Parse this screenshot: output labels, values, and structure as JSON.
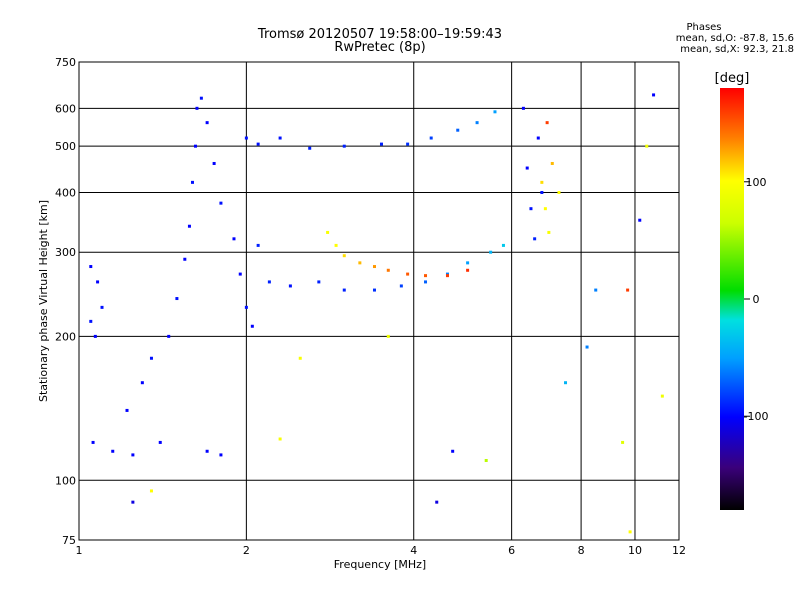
{
  "chart_data": {
    "type": "scatter",
    "title": "Tromsø 20120507 19:58:00–19:59:43",
    "subtitle": "RwPretec (8p)",
    "xlabel": "Frequency [MHz]",
    "ylabel": "Stationary phase Virtual Height [km]",
    "xscale": "log",
    "yscale": "log",
    "xlim": [
      1,
      12
    ],
    "ylim": [
      75,
      750
    ],
    "xticks": [
      1,
      2,
      4,
      6,
      8,
      10,
      12
    ],
    "xgrid": [
      2,
      4,
      6,
      8,
      10
    ],
    "yticks": [
      75,
      100,
      200,
      300,
      400,
      500,
      600,
      750
    ],
    "ygrid": [
      100,
      200,
      300,
      400,
      500,
      600
    ],
    "grid": true,
    "colorbar": {
      "label": "[deg]",
      "min": -180,
      "max": 180,
      "ticks": [
        100,
        0,
        -100
      ]
    },
    "phases": {
      "title": "Phases",
      "line1": "mean, sd,O: -87.8, 15.6",
      "line2": "mean, sd,X:  92.3, 21.8"
    },
    "series": [
      {
        "mode": "O",
        "points": [
          {
            "f": 1.05,
            "h": 280,
            "p": -100
          },
          {
            "f": 1.08,
            "h": 260,
            "p": -100
          },
          {
            "f": 1.05,
            "h": 215,
            "p": -95
          },
          {
            "f": 1.07,
            "h": 200,
            "p": -100
          },
          {
            "f": 1.1,
            "h": 230,
            "p": -95
          },
          {
            "f": 1.06,
            "h": 120,
            "p": -100
          },
          {
            "f": 1.15,
            "h": 115,
            "p": -100
          },
          {
            "f": 1.25,
            "h": 113,
            "p": -100
          },
          {
            "f": 1.22,
            "h": 140,
            "p": -100
          },
          {
            "f": 1.3,
            "h": 160,
            "p": -100
          },
          {
            "f": 1.35,
            "h": 180,
            "p": -95
          },
          {
            "f": 1.4,
            "h": 120,
            "p": -100
          },
          {
            "f": 1.45,
            "h": 200,
            "p": -100
          },
          {
            "f": 1.5,
            "h": 240,
            "p": -95
          },
          {
            "f": 1.55,
            "h": 290,
            "p": -100
          },
          {
            "f": 1.58,
            "h": 340,
            "p": -100
          },
          {
            "f": 1.6,
            "h": 420,
            "p": -95
          },
          {
            "f": 1.62,
            "h": 500,
            "p": -100
          },
          {
            "f": 1.63,
            "h": 600,
            "p": -100
          },
          {
            "f": 1.66,
            "h": 630,
            "p": -95
          },
          {
            "f": 1.7,
            "h": 560,
            "p": -100
          },
          {
            "f": 1.75,
            "h": 460,
            "p": -100
          },
          {
            "f": 1.8,
            "h": 380,
            "p": -95
          },
          {
            "f": 1.9,
            "h": 320,
            "p": -100
          },
          {
            "f": 1.95,
            "h": 270,
            "p": -100
          },
          {
            "f": 2.0,
            "h": 230,
            "p": -95
          },
          {
            "f": 2.05,
            "h": 210,
            "p": -100
          },
          {
            "f": 1.7,
            "h": 115,
            "p": -100
          },
          {
            "f": 1.8,
            "h": 113,
            "p": -100
          },
          {
            "f": 2.0,
            "h": 520,
            "p": -95
          },
          {
            "f": 2.1,
            "h": 505,
            "p": -95
          },
          {
            "f": 2.3,
            "h": 520,
            "p": -95
          },
          {
            "f": 2.6,
            "h": 495,
            "p": -90
          },
          {
            "f": 3.0,
            "h": 500,
            "p": -90
          },
          {
            "f": 3.5,
            "h": 505,
            "p": -90
          },
          {
            "f": 3.9,
            "h": 505,
            "p": -85
          },
          {
            "f": 4.3,
            "h": 520,
            "p": -80
          },
          {
            "f": 4.8,
            "h": 540,
            "p": -70
          },
          {
            "f": 5.2,
            "h": 560,
            "p": -60
          },
          {
            "f": 5.6,
            "h": 590,
            "p": -50
          },
          {
            "f": 2.1,
            "h": 310,
            "p": -90
          },
          {
            "f": 2.2,
            "h": 260,
            "p": -90
          },
          {
            "f": 2.4,
            "h": 255,
            "p": -95
          },
          {
            "f": 2.7,
            "h": 260,
            "p": -90
          },
          {
            "f": 3.0,
            "h": 250,
            "p": -90
          },
          {
            "f": 3.4,
            "h": 250,
            "p": -85
          },
          {
            "f": 3.8,
            "h": 255,
            "p": -80
          },
          {
            "f": 4.2,
            "h": 260,
            "p": -70
          },
          {
            "f": 4.6,
            "h": 270,
            "p": -60
          },
          {
            "f": 5.0,
            "h": 285,
            "p": -50
          },
          {
            "f": 5.5,
            "h": 300,
            "p": -40
          },
          {
            "f": 5.8,
            "h": 310,
            "p": -30
          },
          {
            "f": 6.3,
            "h": 600,
            "p": -100
          },
          {
            "f": 6.4,
            "h": 450,
            "p": -100
          },
          {
            "f": 6.5,
            "h": 370,
            "p": -95
          },
          {
            "f": 6.6,
            "h": 320,
            "p": -90
          },
          {
            "f": 6.7,
            "h": 520,
            "p": -100
          },
          {
            "f": 6.8,
            "h": 400,
            "p": -95
          }
        ]
      },
      {
        "mode": "X",
        "points": [
          {
            "f": 2.8,
            "h": 330,
            "p": 95
          },
          {
            "f": 2.9,
            "h": 310,
            "p": 100
          },
          {
            "f": 3.0,
            "h": 295,
            "p": 110
          },
          {
            "f": 3.2,
            "h": 285,
            "p": 120
          },
          {
            "f": 3.4,
            "h": 280,
            "p": 130
          },
          {
            "f": 3.6,
            "h": 275,
            "p": 140
          },
          {
            "f": 3.9,
            "h": 270,
            "p": 150
          },
          {
            "f": 4.2,
            "h": 268,
            "p": 150
          },
          {
            "f": 4.6,
            "h": 268,
            "p": 160
          },
          {
            "f": 5.0,
            "h": 275,
            "p": 165
          },
          {
            "f": 6.8,
            "h": 420,
            "p": 110
          },
          {
            "f": 6.9,
            "h": 370,
            "p": 100
          },
          {
            "f": 7.0,
            "h": 330,
            "p": 95
          },
          {
            "f": 7.1,
            "h": 460,
            "p": 120
          },
          {
            "f": 6.95,
            "h": 560,
            "p": 160
          },
          {
            "f": 7.3,
            "h": 400,
            "p": 100
          },
          {
            "f": 2.5,
            "h": 180,
            "p": 95
          },
          {
            "f": 2.3,
            "h": 122,
            "p": 95
          }
        ]
      },
      {
        "mode": "noise",
        "points": [
          {
            "f": 4.7,
            "h": 115,
            "p": -100
          },
          {
            "f": 5.4,
            "h": 110,
            "p": 60
          },
          {
            "f": 7.5,
            "h": 160,
            "p": -40
          },
          {
            "f": 8.5,
            "h": 250,
            "p": -60
          },
          {
            "f": 9.5,
            "h": 120,
            "p": 80
          },
          {
            "f": 9.8,
            "h": 78,
            "p": 100
          },
          {
            "f": 10.5,
            "h": 500,
            "p": 90
          },
          {
            "f": 10.8,
            "h": 640,
            "p": -100
          },
          {
            "f": 11.2,
            "h": 150,
            "p": 90
          },
          {
            "f": 8.2,
            "h": 190,
            "p": -60
          },
          {
            "f": 4.4,
            "h": 90,
            "p": -110
          },
          {
            "f": 3.6,
            "h": 200,
            "p": 90
          },
          {
            "f": 1.35,
            "h": 95,
            "p": 100
          },
          {
            "f": 1.25,
            "h": 90,
            "p": -110
          },
          {
            "f": 9.7,
            "h": 250,
            "p": 160
          },
          {
            "f": 10.2,
            "h": 350,
            "p": -100
          }
        ]
      }
    ]
  }
}
